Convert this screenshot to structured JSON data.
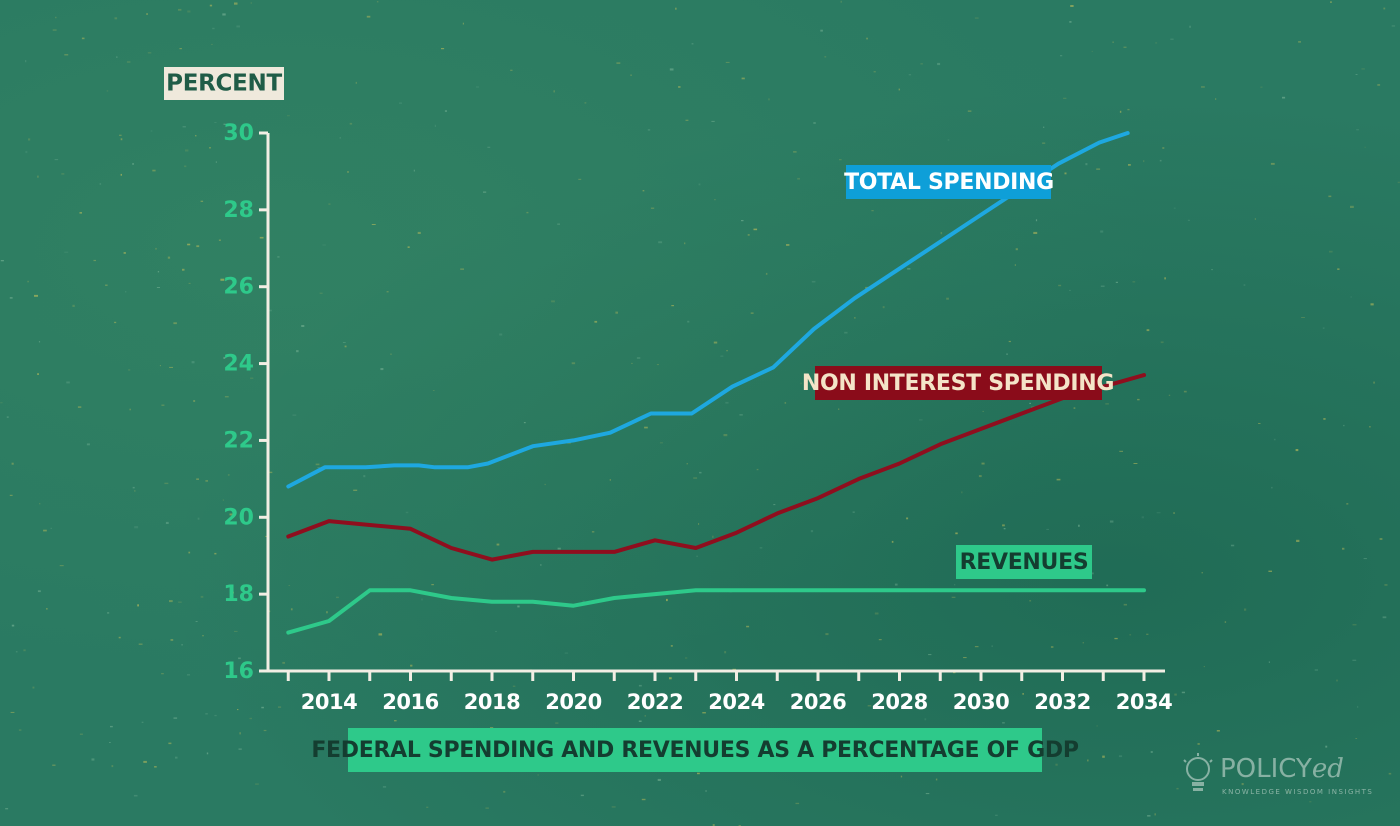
{
  "chart_data": {
    "type": "line",
    "title": "FEDERAL SPENDING AND REVENUES AS A PERCENTAGE OF GDP",
    "ylabel": "PERCENT",
    "xlabel": "",
    "ylim": [
      16,
      30
    ],
    "xlim": [
      2012.5,
      2034
    ],
    "yticks": [
      16,
      18,
      20,
      22,
      24,
      26,
      28,
      30
    ],
    "xticks": [
      2014,
      2016,
      2018,
      2020,
      2022,
      2024,
      2026,
      2028,
      2030,
      2032,
      2034
    ],
    "grid": false,
    "series": [
      {
        "name": "TOTAL SPENDING",
        "color": "#1ea8e0",
        "label_color": "#0e9fd8",
        "label_text_color": "#ffffff",
        "points": [
          [
            2013,
            20.8
          ],
          [
            2013.9,
            21.3
          ],
          [
            2014.9,
            21.3
          ],
          [
            2015.6,
            21.35
          ],
          [
            2016.2,
            21.35
          ],
          [
            2016.6,
            21.3
          ],
          [
            2017.4,
            21.3
          ],
          [
            2017.9,
            21.4
          ],
          [
            2019.0,
            21.85
          ],
          [
            2020.0,
            22.0
          ],
          [
            2020.9,
            22.2
          ],
          [
            2021.9,
            22.7
          ],
          [
            2022.9,
            22.7
          ],
          [
            2023.9,
            23.4
          ],
          [
            2024.9,
            23.9
          ],
          [
            2025.9,
            24.9
          ],
          [
            2026.9,
            25.7
          ],
          [
            2027.9,
            26.4
          ],
          [
            2028.9,
            27.1
          ],
          [
            2029.9,
            27.8
          ],
          [
            2030.9,
            28.5
          ],
          [
            2031.9,
            29.2
          ],
          [
            2032.9,
            29.75
          ],
          [
            2033.6,
            30.0
          ]
        ]
      },
      {
        "name": "NON INTEREST SPENDING",
        "color": "#8f0e1e",
        "label_color": "#8a0c1a",
        "label_text_color": "#f4e4c8",
        "points": [
          [
            2013,
            19.5
          ],
          [
            2014,
            19.9
          ],
          [
            2015,
            19.8
          ],
          [
            2016,
            19.7
          ],
          [
            2017,
            19.2
          ],
          [
            2018,
            18.9
          ],
          [
            2019,
            19.1
          ],
          [
            2020,
            19.1
          ],
          [
            2021,
            19.1
          ],
          [
            2022,
            19.4
          ],
          [
            2023,
            19.2
          ],
          [
            2024,
            19.6
          ],
          [
            2025,
            20.1
          ],
          [
            2026,
            20.5
          ],
          [
            2027,
            21.0
          ],
          [
            2028,
            21.4
          ],
          [
            2029,
            21.9
          ],
          [
            2030,
            22.3
          ],
          [
            2031,
            22.7
          ],
          [
            2032,
            23.1
          ],
          [
            2033,
            23.4
          ],
          [
            2034,
            23.7
          ]
        ]
      },
      {
        "name": "REVENUES",
        "color": "#2ec98a",
        "label_color": "#2ec98a",
        "label_text_color": "#143d30",
        "points": [
          [
            2013,
            17.0
          ],
          [
            2014,
            17.3
          ],
          [
            2015,
            18.1
          ],
          [
            2016,
            18.1
          ],
          [
            2017,
            17.9
          ],
          [
            2018,
            17.8
          ],
          [
            2019,
            17.8
          ],
          [
            2020,
            17.7
          ],
          [
            2021,
            17.9
          ],
          [
            2022,
            18.0
          ],
          [
            2023,
            18.1
          ],
          [
            2024,
            18.1
          ],
          [
            2025,
            18.1
          ],
          [
            2026,
            18.1
          ],
          [
            2027,
            18.1
          ],
          [
            2028,
            18.1
          ],
          [
            2029,
            18.1
          ],
          [
            2030,
            18.1
          ],
          [
            2031,
            18.1
          ],
          [
            2032,
            18.1
          ],
          [
            2033,
            18.1
          ],
          [
            2034,
            18.1
          ]
        ]
      }
    ]
  },
  "logo": {
    "wordmark_main": "POLICY",
    "wordmark_suffix": "ed",
    "tagline": "KNOWLEDGE WISDOM INSIGHTS",
    "icon": "lightbulb-icon"
  },
  "colors": {
    "background": "#2a7a62",
    "axis": "#f2eee4",
    "ylabel_bg": "#efe9dc",
    "ylabel_text": "#1f5c47",
    "title_bg": "#2ec98a",
    "title_text": "#143d30",
    "ytick": "#2ec98a",
    "xtick": "#ffffff"
  }
}
